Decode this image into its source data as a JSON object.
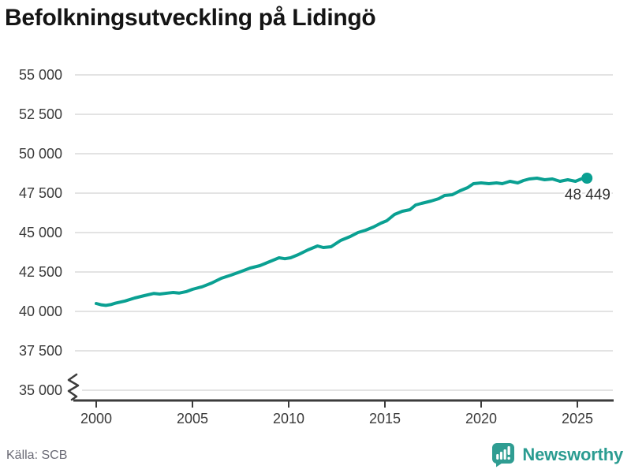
{
  "header": {
    "title": "Befolkningsutveckling på Lidingö"
  },
  "footer": {
    "source": "Källa: SCB",
    "brand": "Newsworthy"
  },
  "colors": {
    "line": "#0aa092",
    "grid": "#e3e3e3",
    "axis": "#3c3c3c",
    "tick_label": "#3a3a3a",
    "title": "#141414",
    "source": "#6a6a75",
    "brand": "#2b9c91",
    "end_label": "#333333"
  },
  "chart_data": {
    "type": "line",
    "title": "Befolkningsutveckling på Lidingö",
    "xlabel": "",
    "ylabel": "",
    "xlim": [
      2000,
      2025.5
    ],
    "ylim": [
      35000,
      55000
    ],
    "grid": "horizontal",
    "axis_break": true,
    "legend_position": "none",
    "x_ticks": [
      2000,
      2005,
      2010,
      2015,
      2020,
      2025
    ],
    "y_ticks": [
      {
        "value": 55000,
        "label": "55 000"
      },
      {
        "value": 52500,
        "label": "52 500"
      },
      {
        "value": 50000,
        "label": "50 000"
      },
      {
        "value": 47500,
        "label": "47 500"
      },
      {
        "value": 45000,
        "label": "45 000"
      },
      {
        "value": 42500,
        "label": "42 500"
      },
      {
        "value": 40000,
        "label": "40 000"
      },
      {
        "value": 37500,
        "label": "37 500"
      },
      {
        "value": 35000,
        "label": "35 000"
      }
    ],
    "end_label": "48 449",
    "end_value": 48449,
    "series": [
      {
        "name": "Befolkning",
        "points": [
          [
            2000.0,
            40500
          ],
          [
            2000.25,
            40420
          ],
          [
            2000.5,
            40380
          ],
          [
            2000.75,
            40430
          ],
          [
            2001.0,
            40520
          ],
          [
            2001.5,
            40660
          ],
          [
            2002.0,
            40850
          ],
          [
            2002.5,
            41000
          ],
          [
            2003.0,
            41140
          ],
          [
            2003.3,
            41100
          ],
          [
            2003.7,
            41160
          ],
          [
            2004.0,
            41200
          ],
          [
            2004.3,
            41160
          ],
          [
            2004.7,
            41260
          ],
          [
            2005.0,
            41400
          ],
          [
            2005.5,
            41560
          ],
          [
            2006.0,
            41800
          ],
          [
            2006.5,
            42100
          ],
          [
            2007.0,
            42300
          ],
          [
            2007.5,
            42520
          ],
          [
            2008.0,
            42750
          ],
          [
            2008.5,
            42900
          ],
          [
            2009.0,
            43150
          ],
          [
            2009.5,
            43400
          ],
          [
            2009.8,
            43340
          ],
          [
            2010.1,
            43400
          ],
          [
            2010.5,
            43600
          ],
          [
            2011.0,
            43900
          ],
          [
            2011.5,
            44150
          ],
          [
            2011.8,
            44050
          ],
          [
            2012.2,
            44100
          ],
          [
            2012.7,
            44500
          ],
          [
            2013.2,
            44750
          ],
          [
            2013.6,
            45000
          ],
          [
            2014.0,
            45150
          ],
          [
            2014.4,
            45350
          ],
          [
            2014.8,
            45600
          ],
          [
            2015.1,
            45750
          ],
          [
            2015.5,
            46150
          ],
          [
            2015.9,
            46350
          ],
          [
            2016.3,
            46450
          ],
          [
            2016.6,
            46750
          ],
          [
            2016.9,
            46850
          ],
          [
            2017.4,
            47000
          ],
          [
            2017.8,
            47150
          ],
          [
            2018.1,
            47350
          ],
          [
            2018.5,
            47400
          ],
          [
            2018.9,
            47650
          ],
          [
            2019.3,
            47850
          ],
          [
            2019.6,
            48100
          ],
          [
            2020.0,
            48150
          ],
          [
            2020.4,
            48100
          ],
          [
            2020.8,
            48150
          ],
          [
            2021.1,
            48100
          ],
          [
            2021.5,
            48250
          ],
          [
            2021.9,
            48150
          ],
          [
            2022.2,
            48300
          ],
          [
            2022.5,
            48400
          ],
          [
            2022.9,
            48450
          ],
          [
            2023.3,
            48350
          ],
          [
            2023.7,
            48400
          ],
          [
            2024.1,
            48250
          ],
          [
            2024.5,
            48350
          ],
          [
            2024.9,
            48250
          ],
          [
            2025.2,
            48400
          ],
          [
            2025.5,
            48449
          ]
        ]
      }
    ]
  }
}
